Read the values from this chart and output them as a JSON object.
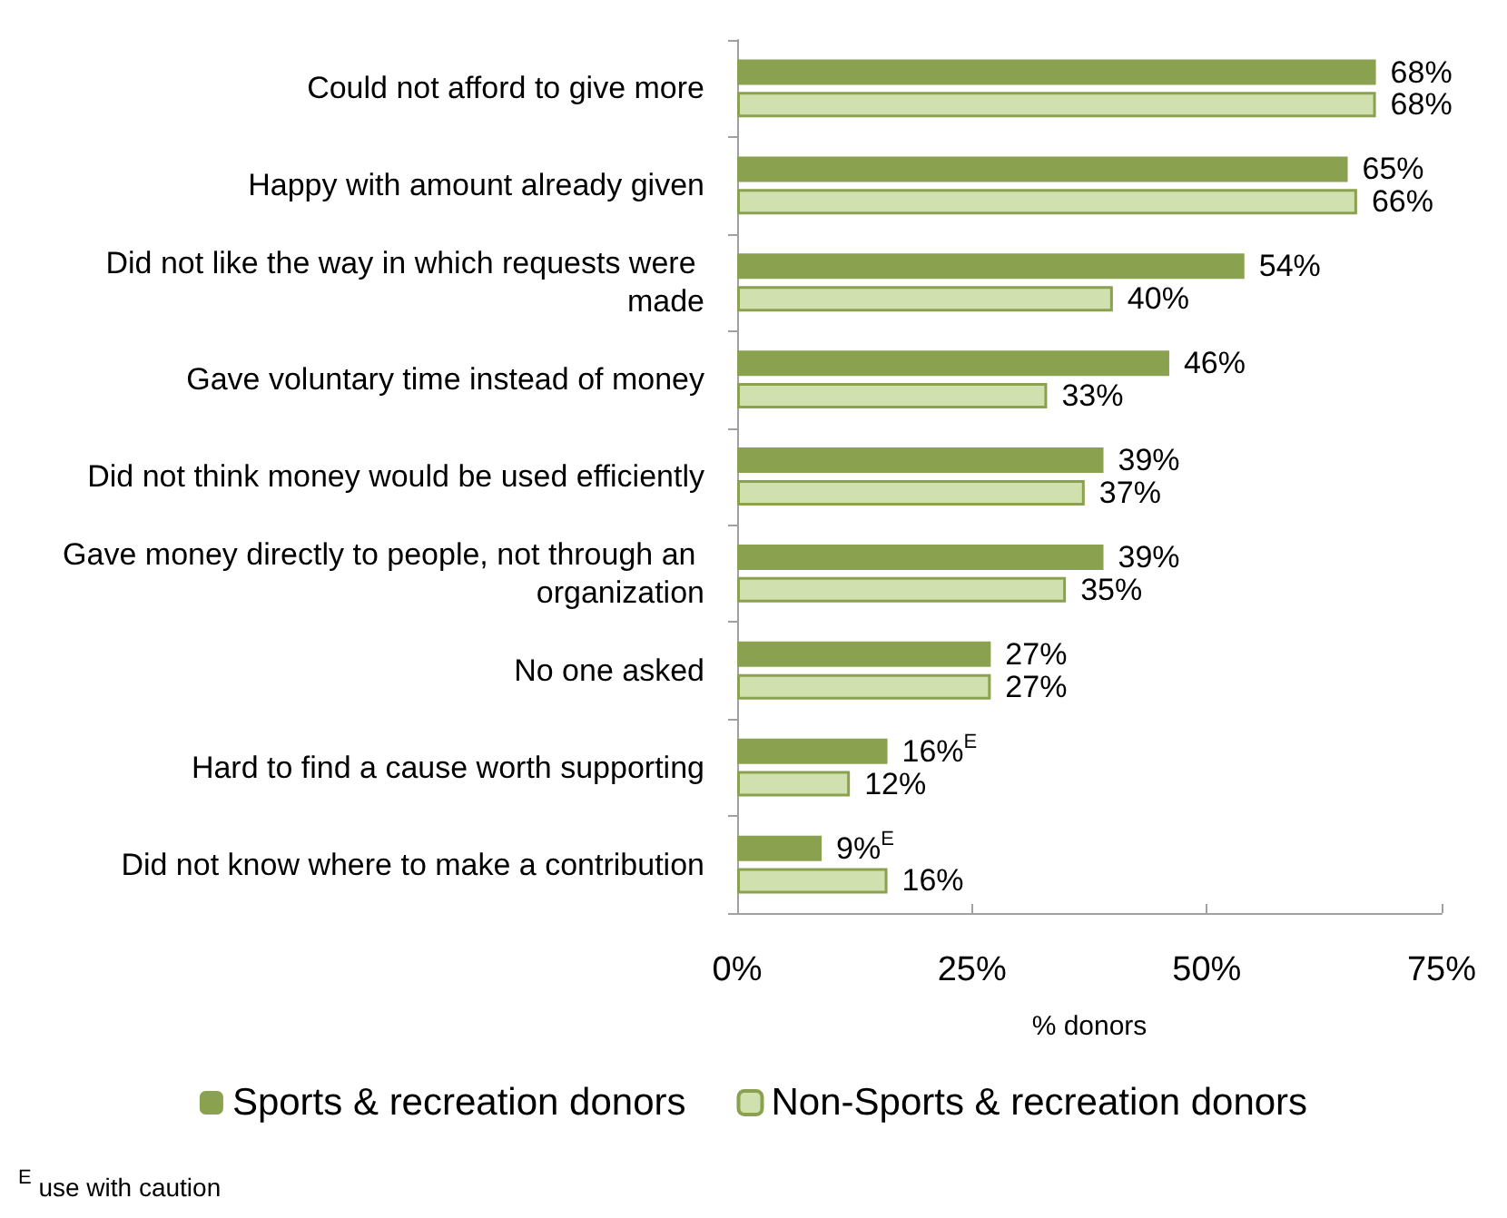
{
  "chart_data": {
    "type": "bar",
    "orientation": "horizontal",
    "categories": [
      "Could not afford to give more",
      "Happy with amount already given",
      "Did not like the way in which requests were made",
      "Gave voluntary time instead of money",
      "Did not think money would be used efficiently",
      "Gave money directly to people, not through an organization",
      "No one asked",
      "Hard to find a cause worth supporting",
      "Did not know where to make a contribution"
    ],
    "series": [
      {
        "name": "Sports & recreation donors",
        "color": "#8aa24f",
        "values": [
          68,
          65,
          54,
          46,
          39,
          39,
          27,
          16,
          9
        ],
        "value_labels": [
          "68%",
          "65%",
          "54%",
          "46%",
          "39%",
          "39%",
          "27%",
          "16%$^{E}$",
          "9%$^{E}$"
        ]
      },
      {
        "name": "Non-Sports & recreation donors",
        "color": "#d0e0ae",
        "values": [
          68,
          66,
          40,
          33,
          37,
          35,
          27,
          12,
          16
        ],
        "value_labels": [
          "68%",
          "66%",
          "40%",
          "33%",
          "37%",
          "35%",
          "27%",
          "12%",
          "16%"
        ]
      }
    ],
    "xlim": [
      0,
      75
    ],
    "xticks": [
      {
        "value": 0,
        "label": "0%"
      },
      {
        "value": 25,
        "label": "25%"
      },
      {
        "value": 50,
        "label": "50%"
      },
      {
        "value": 75,
        "label": "75%"
      }
    ],
    "xlabel": "% donors",
    "legend": "bottom",
    "grid": false,
    "annotations": [
      "$^{E}$ use with caution"
    ]
  }
}
